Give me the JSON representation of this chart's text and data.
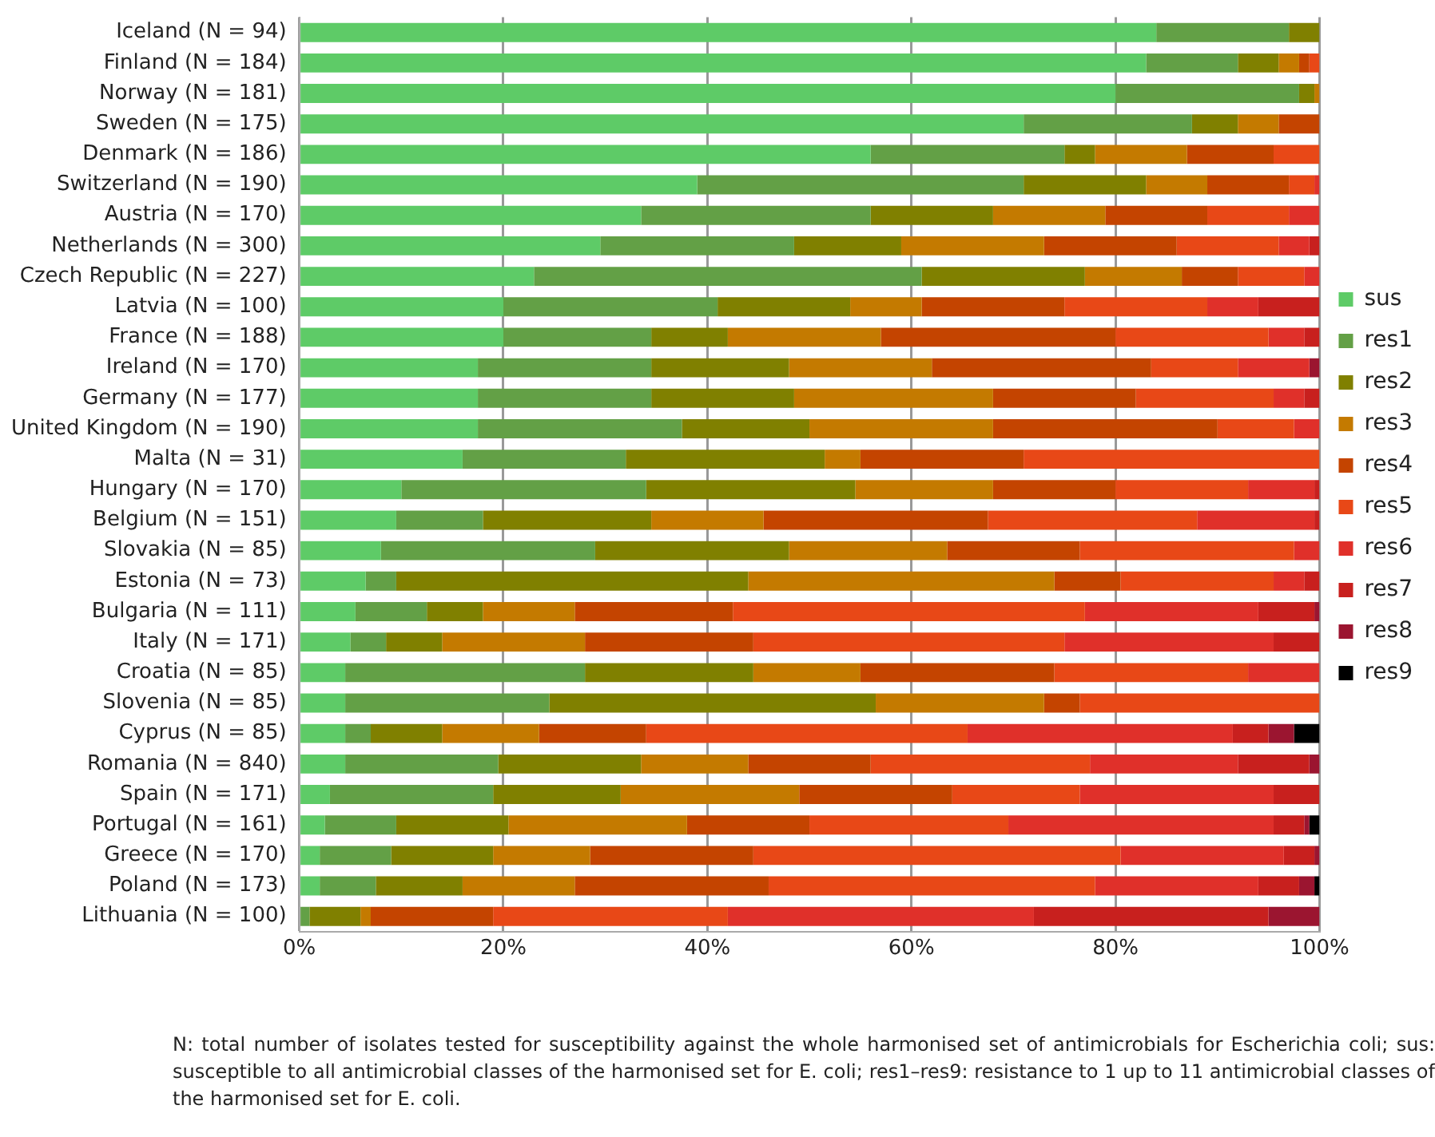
{
  "chart_data": {
    "type": "bar",
    "orientation": "horizontal",
    "stacked": true,
    "grid": "x",
    "legend": "right",
    "categories": [
      "Iceland (N = 94)",
      "Finland (N = 184)",
      "Norway (N = 181)",
      "Sweden (N = 175)",
      "Denmark (N = 186)",
      "Switzerland (N = 190)",
      "Austria (N = 170)",
      "Netherlands (N = 300)",
      "Czech Republic (N = 227)",
      "Latvia (N = 100)",
      "France (N = 188)",
      "Ireland (N = 170)",
      "Germany (N = 177)",
      "United Kingdom (N = 190)",
      "Malta (N = 31)",
      "Hungary (N = 170)",
      "Belgium (N = 151)",
      "Slovakia (N = 85)",
      "Estonia (N = 73)",
      "Bulgaria (N = 111)",
      "Italy (N = 171)",
      "Croatia (N = 85)",
      "Slovenia (N = 85)",
      "Cyprus (N = 85)",
      "Romania (N = 840)",
      "Spain (N = 171)",
      "Portugal (N = 161)",
      "Greece (N = 170)",
      "Poland (N = 173)",
      "Lithuania (N = 100)"
    ],
    "series": [
      {
        "name": "sus",
        "color": "#5ecb67",
        "values": [
          84,
          83,
          80,
          71,
          56,
          39,
          33.5,
          29.5,
          23,
          20,
          20,
          17.5,
          17.5,
          17.5,
          16,
          10,
          9.5,
          8,
          6.5,
          5.5,
          5,
          4.5,
          4.5,
          4.5,
          4.5,
          3,
          2.5,
          2,
          2,
          null
        ]
      },
      {
        "name": "res1",
        "color": "#63a046",
        "values": [
          13,
          9,
          18,
          16.5,
          19,
          32,
          22.5,
          19,
          38,
          21,
          14.5,
          17,
          17,
          20,
          16,
          24,
          8.5,
          21,
          3,
          7,
          3.5,
          23.5,
          20,
          2.5,
          15,
          16,
          7,
          7,
          5.5,
          1
        ]
      },
      {
        "name": "res2",
        "color": "#808000",
        "values": [
          3,
          4,
          1.5,
          4.5,
          3,
          12,
          12,
          10.5,
          16,
          13,
          7.5,
          13.5,
          14,
          12.5,
          19.5,
          20.5,
          16.5,
          19,
          34.5,
          5.5,
          5.5,
          16.5,
          32,
          7,
          14,
          12.5,
          11,
          10,
          8.5,
          5
        ]
      },
      {
        "name": "res3",
        "color": "#c47a00",
        "values": [
          null,
          2,
          0.5,
          4,
          9,
          6,
          11,
          14,
          9.5,
          7,
          15,
          14,
          19.5,
          18,
          3.5,
          13.5,
          11,
          15.5,
          30,
          9,
          14,
          10.5,
          16.5,
          9.5,
          10.5,
          17.5,
          17.5,
          9.5,
          11,
          1
        ]
      },
      {
        "name": "res4",
        "color": "#c44400",
        "values": [
          null,
          1,
          null,
          4,
          8.5,
          8,
          10,
          13,
          5.5,
          14,
          23,
          21.5,
          14,
          22,
          16,
          12,
          22,
          13,
          6.5,
          15.5,
          16.5,
          19,
          3.5,
          10.5,
          12,
          15,
          12,
          16,
          19,
          12
        ]
      },
      {
        "name": "res5",
        "color": "#e84817",
        "values": [
          null,
          1,
          null,
          null,
          4.5,
          2.5,
          8,
          10,
          6.5,
          14,
          15,
          8.5,
          13.5,
          7.5,
          29,
          13,
          20.5,
          21,
          15,
          34.5,
          30.5,
          19,
          23.5,
          31.5,
          21.5,
          12.5,
          19.5,
          36,
          32,
          23
        ]
      },
      {
        "name": "res6",
        "color": "#e0302a",
        "values": [
          null,
          null,
          null,
          null,
          null,
          0.5,
          3,
          3,
          1.5,
          5,
          3.5,
          7,
          3,
          2.5,
          null,
          6.5,
          11.5,
          2.5,
          3,
          17,
          20.5,
          7,
          null,
          26,
          14.5,
          19,
          26,
          16,
          16,
          30
        ]
      },
      {
        "name": "res7",
        "color": "#c8201e",
        "values": [
          null,
          null,
          null,
          null,
          null,
          null,
          null,
          1,
          null,
          6,
          1.5,
          null,
          1.5,
          null,
          null,
          0.5,
          0.5,
          null,
          1.5,
          5.5,
          4.5,
          null,
          null,
          3.5,
          7,
          4.5,
          3,
          3,
          4,
          23
        ]
      },
      {
        "name": "res8",
        "color": "#9b1530",
        "values": [
          null,
          null,
          null,
          null,
          null,
          null,
          null,
          null,
          null,
          null,
          null,
          1,
          null,
          null,
          null,
          null,
          null,
          null,
          null,
          0.5,
          null,
          null,
          null,
          2.5,
          1,
          null,
          0.5,
          0.5,
          1.5,
          5
        ]
      },
      {
        "name": "res9",
        "color": "#000000",
        "values": [
          null,
          null,
          null,
          null,
          null,
          null,
          null,
          null,
          null,
          null,
          null,
          null,
          null,
          null,
          null,
          null,
          null,
          null,
          null,
          null,
          null,
          null,
          null,
          2.5,
          null,
          null,
          1,
          null,
          0.5,
          null
        ]
      }
    ],
    "xlim": [
      0,
      100
    ],
    "xticks": [
      {
        "value": 0,
        "label": "0%"
      },
      {
        "value": 20,
        "label": "20%"
      },
      {
        "value": 40,
        "label": "40%"
      },
      {
        "value": 60,
        "label": "60%"
      },
      {
        "value": 80,
        "label": "80%"
      },
      {
        "value": 100,
        "label": "100%"
      }
    ],
    "annotations": [
      "N: total number of isolates tested for susceptibility against the whole harmonised set of antimicrobials for Escherichia coli; sus: susceptible to all antimicrobial classes of the harmonised set for E. coli; res1–res9: resistance to 1 up to 11 antimicrobial classes of the harmonised set for E. coli."
    ]
  }
}
